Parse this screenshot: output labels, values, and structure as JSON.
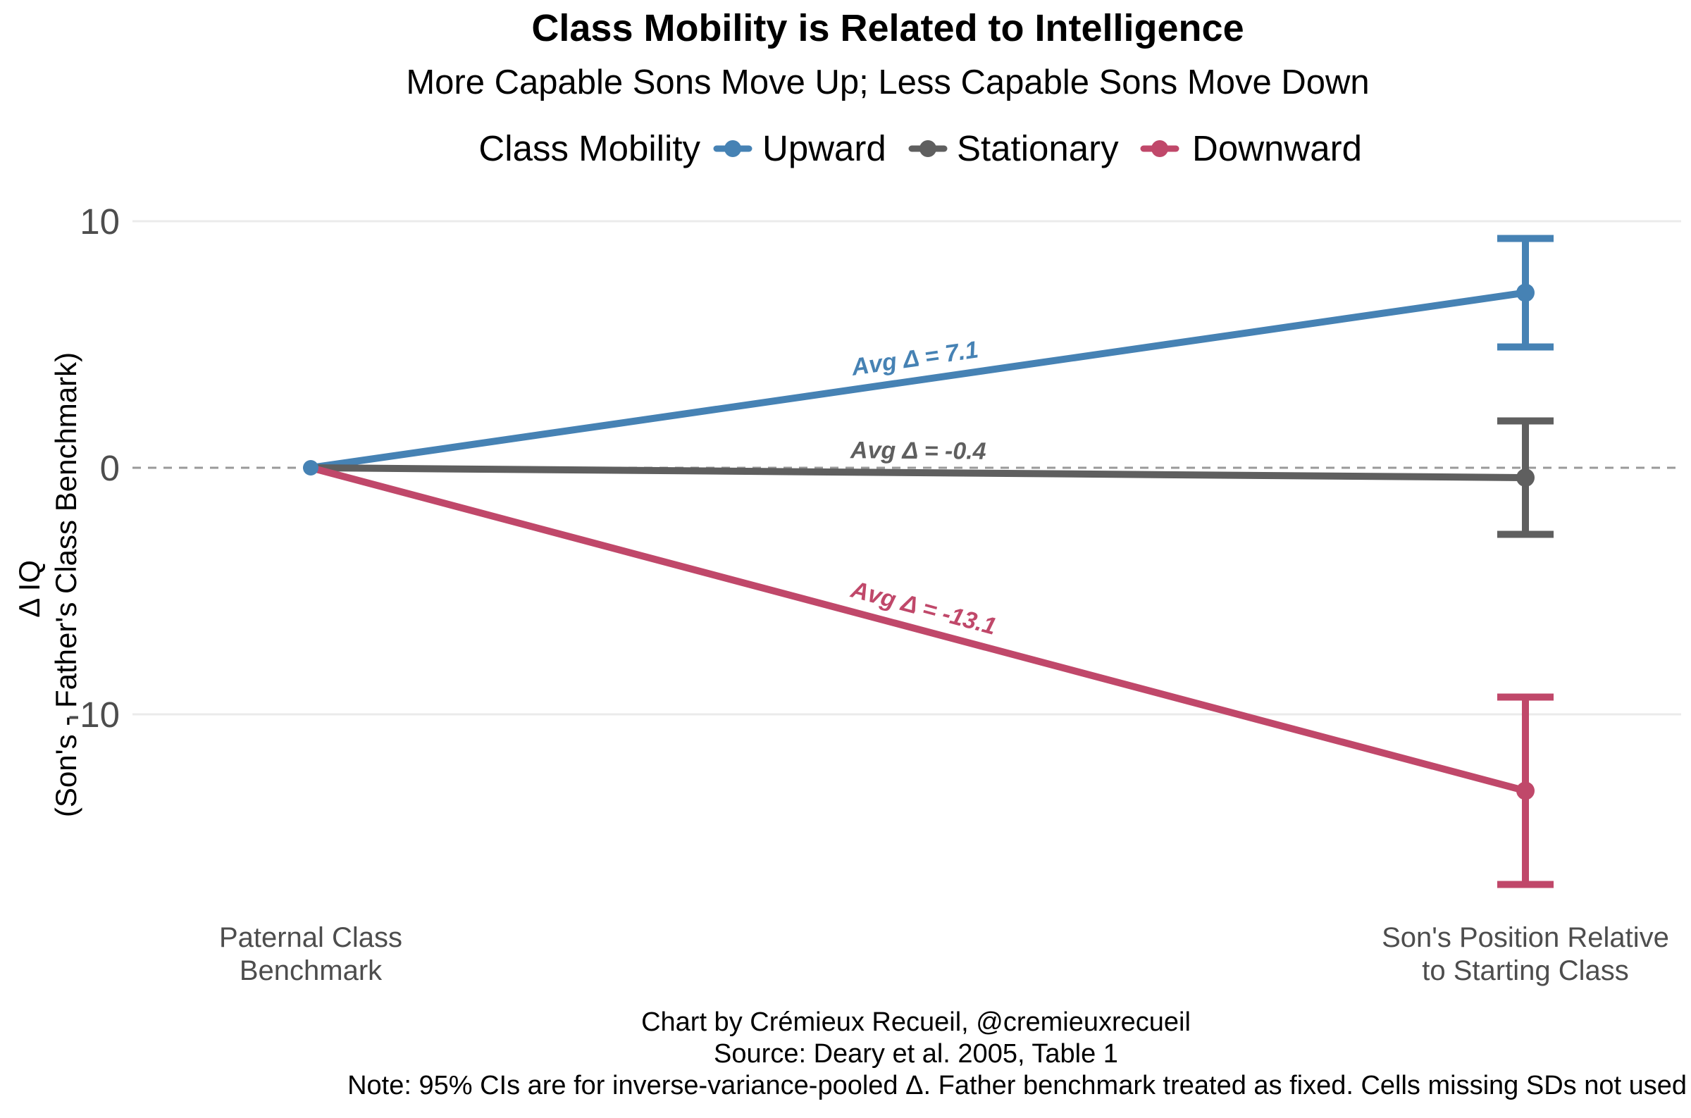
{
  "chart_data": {
    "type": "line",
    "title": "Class Mobility is Related to Intelligence",
    "subtitle": "More Capable Sons Move Up; Less Capable Sons Move Down",
    "legend": {
      "title": "Class Mobility",
      "position": "top",
      "entries": [
        "Upward",
        "Stationary",
        "Downward"
      ]
    },
    "ylabel": [
      "Δ IQ",
      "(Son's - Father's Class Benchmark)"
    ],
    "ylim": [
      -17.5,
      10.5
    ],
    "yticks": [
      10,
      0,
      -10
    ],
    "ytick_labels": [
      "10",
      "0",
      "-10"
    ],
    "reference_line": 0,
    "categories": [
      [
        "Paternal Class",
        "Benchmark"
      ],
      [
        "Son's Position Relative",
        "to Starting Class"
      ]
    ],
    "series": [
      {
        "name": "Upward",
        "color": "#4682b4",
        "values": [
          0,
          7.1
        ],
        "ci": [
          4.9,
          9.3
        ],
        "label": "Avg Δ = 7.1"
      },
      {
        "name": "Stationary",
        "color": "#5f5f5f",
        "values": [
          0,
          -0.4
        ],
        "ci": [
          -2.7,
          1.9
        ],
        "label": "Avg Δ = -0.4"
      },
      {
        "name": "Downward",
        "color": "#c0486a",
        "values": [
          0,
          -13.1
        ],
        "ci": [
          -16.9,
          -9.3
        ],
        "label": "Avg Δ = -13.1"
      }
    ],
    "caption": [
      "Chart by Crémieux Recueil, @cremieuxrecueil",
      "Source: Deary et al. 2005, Table 1",
      "Note: 95% CIs are for inverse-variance-pooled Δ. Father benchmark treated as fixed. Cells missing SDs not used"
    ]
  }
}
